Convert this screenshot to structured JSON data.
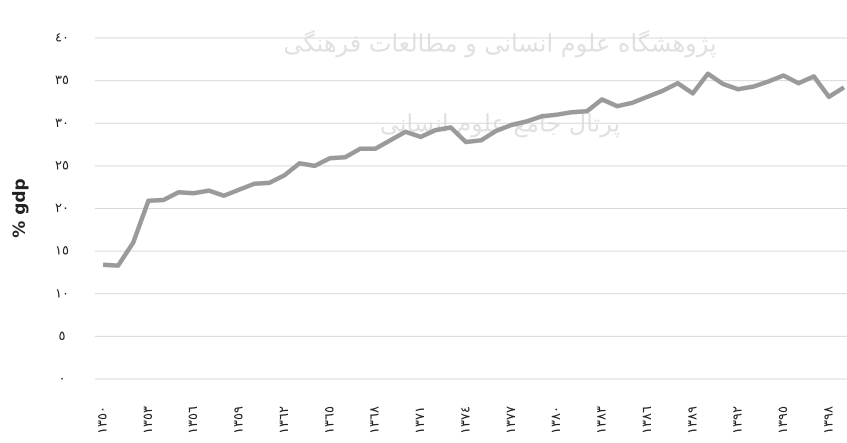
{
  "chart_data": {
    "type": "line",
    "y_label": "% gdp",
    "watermark": [
      "پژوهشگاه علوم انسانی و مطالعات فرهنگی",
      "پرتال جامع علوم انسانی"
    ],
    "categories": [
      "١٣٥٠",
      null,
      null,
      "١٣٥٣",
      null,
      null,
      "١٣٥٦",
      null,
      null,
      "١٣٥٩",
      null,
      null,
      "١٣٦٢",
      null,
      null,
      "١٣٦٥",
      null,
      null,
      "١٣٦٨",
      null,
      null,
      "١٣٧١",
      null,
      null,
      "١٣٧٤",
      null,
      null,
      "١٣٧٧",
      null,
      null,
      "١٣٨٠",
      null,
      null,
      "١٣٨٣",
      null,
      null,
      "١٣٨٦",
      null,
      null,
      "١٣٨٩",
      null,
      null,
      "١٣٩٢",
      null,
      null,
      "١٣٩٥",
      null,
      null,
      "١٣٩٨",
      null
    ],
    "values": [
      13.4,
      13.3,
      16,
      20.9,
      21,
      21.9,
      21.8,
      22.1,
      21.5,
      22.2,
      22.9,
      23,
      23.9,
      25.3,
      25,
      25.9,
      26,
      27,
      27,
      28,
      29,
      28.4,
      29.2,
      29.5,
      27.8,
      28,
      29.1,
      29.8,
      30.2,
      30.8,
      31,
      31.3,
      31.4,
      32.8,
      32,
      32.4,
      33.1,
      33.8,
      34.7,
      33.5,
      35.8,
      34.6,
      34,
      34.3,
      34.9,
      35.6,
      34.7,
      35.5,
      33.1,
      34.2
    ],
    "color": "#9a9a9a",
    "ylim": [
      0,
      40
    ],
    "yticks": [
      {
        "value": 0,
        "label": "٠"
      },
      {
        "value": 5,
        "label": "٥"
      },
      {
        "value": 10,
        "label": "١٠"
      },
      {
        "value": 15,
        "label": "١٥"
      },
      {
        "value": 20,
        "label": "٢٠"
      },
      {
        "value": 25,
        "label": "٢٥"
      },
      {
        "value": 30,
        "label": "٣٠"
      },
      {
        "value": 35,
        "label": "٣٥"
      },
      {
        "value": 40,
        "label": "٤٠"
      }
    ],
    "grid": true
  }
}
